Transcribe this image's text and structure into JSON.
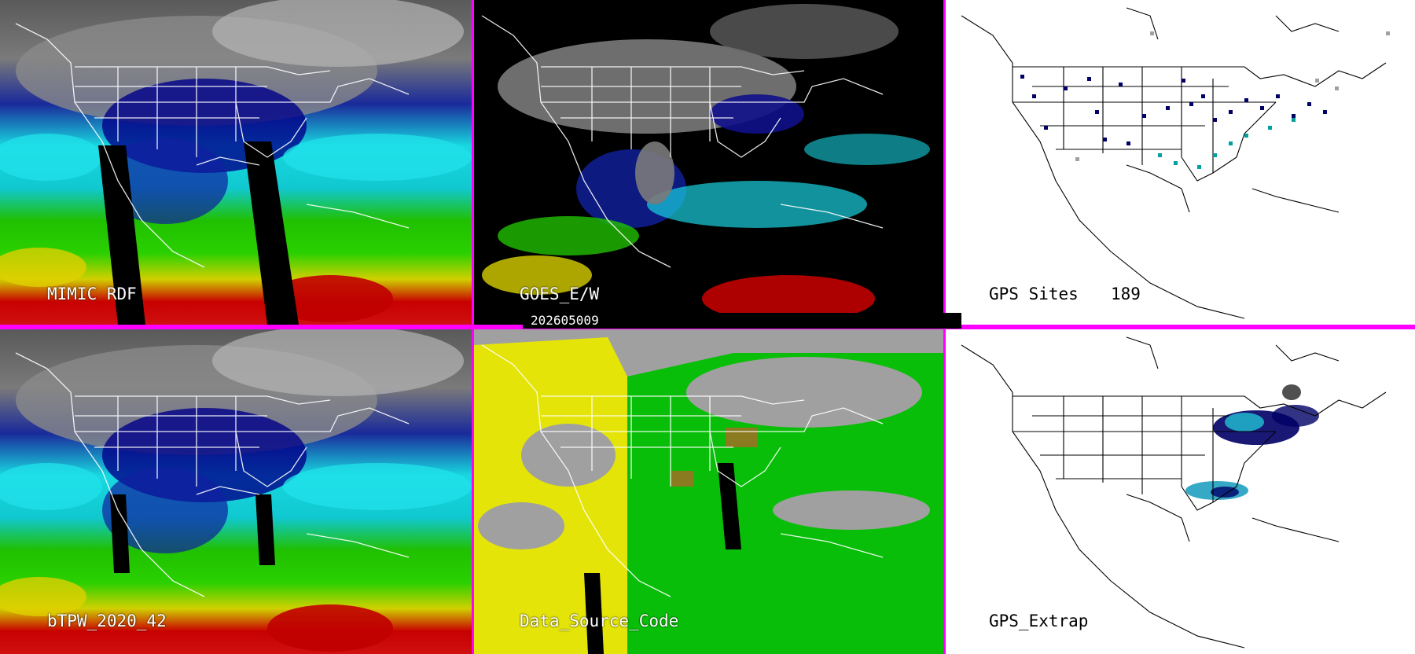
{
  "panels": [
    {
      "id": "p1",
      "label": "MIMIC RDF",
      "theme": "tpw"
    },
    {
      "id": "p2",
      "label": "GOES_E/W",
      "theme": "goes"
    },
    {
      "id": "p3",
      "label": "GPS Sites",
      "count": "189",
      "theme": "gps"
    },
    {
      "id": "p4",
      "label": "bTPW_2020_42",
      "theme": "tpw"
    },
    {
      "id": "p5",
      "label": "Data_Source_Code",
      "theme": "source"
    },
    {
      "id": "p6",
      "label": "GPS_Extrap",
      "theme": "gpsx"
    }
  ],
  "date_stamp": "202605009",
  "colors": {
    "separator": "#ff00ff",
    "tpw_scale": [
      "#000000",
      "#4a4a4a",
      "#8c8c8c",
      "#d0d0d0",
      "#00007a",
      "#0000c8",
      "#1a3ab0",
      "#00e4e4",
      "#00c800",
      "#30e000",
      "#c8c800",
      "#ffe800",
      "#ff8000",
      "#c00000",
      "#ff00ff"
    ],
    "source_scale": [
      "#a0a0a0",
      "#e8e800",
      "#00c000",
      "#8a7a20",
      "#000000"
    ],
    "gps_site": "#000066",
    "gps_site_alt": "#00a0a0"
  }
}
